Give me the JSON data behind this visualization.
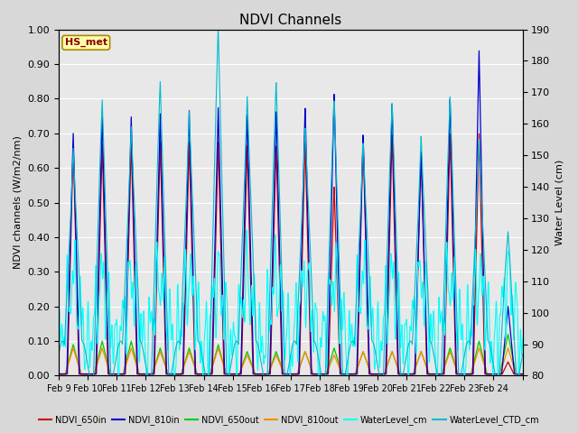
{
  "title": "NDVI Channels",
  "ylabel_left": "NDVI channels (W/m2/nm)",
  "ylabel_right": "Water Level (cm)",
  "ylim_left": [
    0.0,
    1.0
  ],
  "ylim_right": [
    80,
    190
  ],
  "yticks_left": [
    0.0,
    0.1,
    0.2,
    0.3,
    0.4,
    0.5,
    0.6,
    0.7,
    0.8,
    0.9,
    1.0
  ],
  "yticks_right": [
    80,
    90,
    100,
    110,
    120,
    130,
    140,
    150,
    160,
    170,
    180,
    190
  ],
  "series_colors": {
    "NDVI_650in": "#cc0000",
    "NDVI_810in": "#0000cc",
    "NDVI_650out": "#00cc00",
    "NDVI_810out": "#ff8800",
    "WaterLevel_cm": "#00ffff",
    "WaterLevel_CTD_cm": "#00bbcc"
  },
  "legend_label": "HS_met",
  "background_color": "#d8d8d8",
  "plot_bg_color": "#e8e8e8",
  "n_days": 16,
  "day_labels": [
    "Feb 9",
    "Feb 10",
    "Feb 11",
    "Feb 12",
    "Feb 13",
    "Feb 14",
    "Feb 15",
    "Feb 16",
    "Feb 17",
    "Feb 18",
    "Feb 19",
    "Feb 20",
    "Feb 21",
    "Feb 22",
    "Feb 23",
    "Feb 24"
  ],
  "figsize": [
    6.4,
    4.8
  ],
  "dpi": 100
}
